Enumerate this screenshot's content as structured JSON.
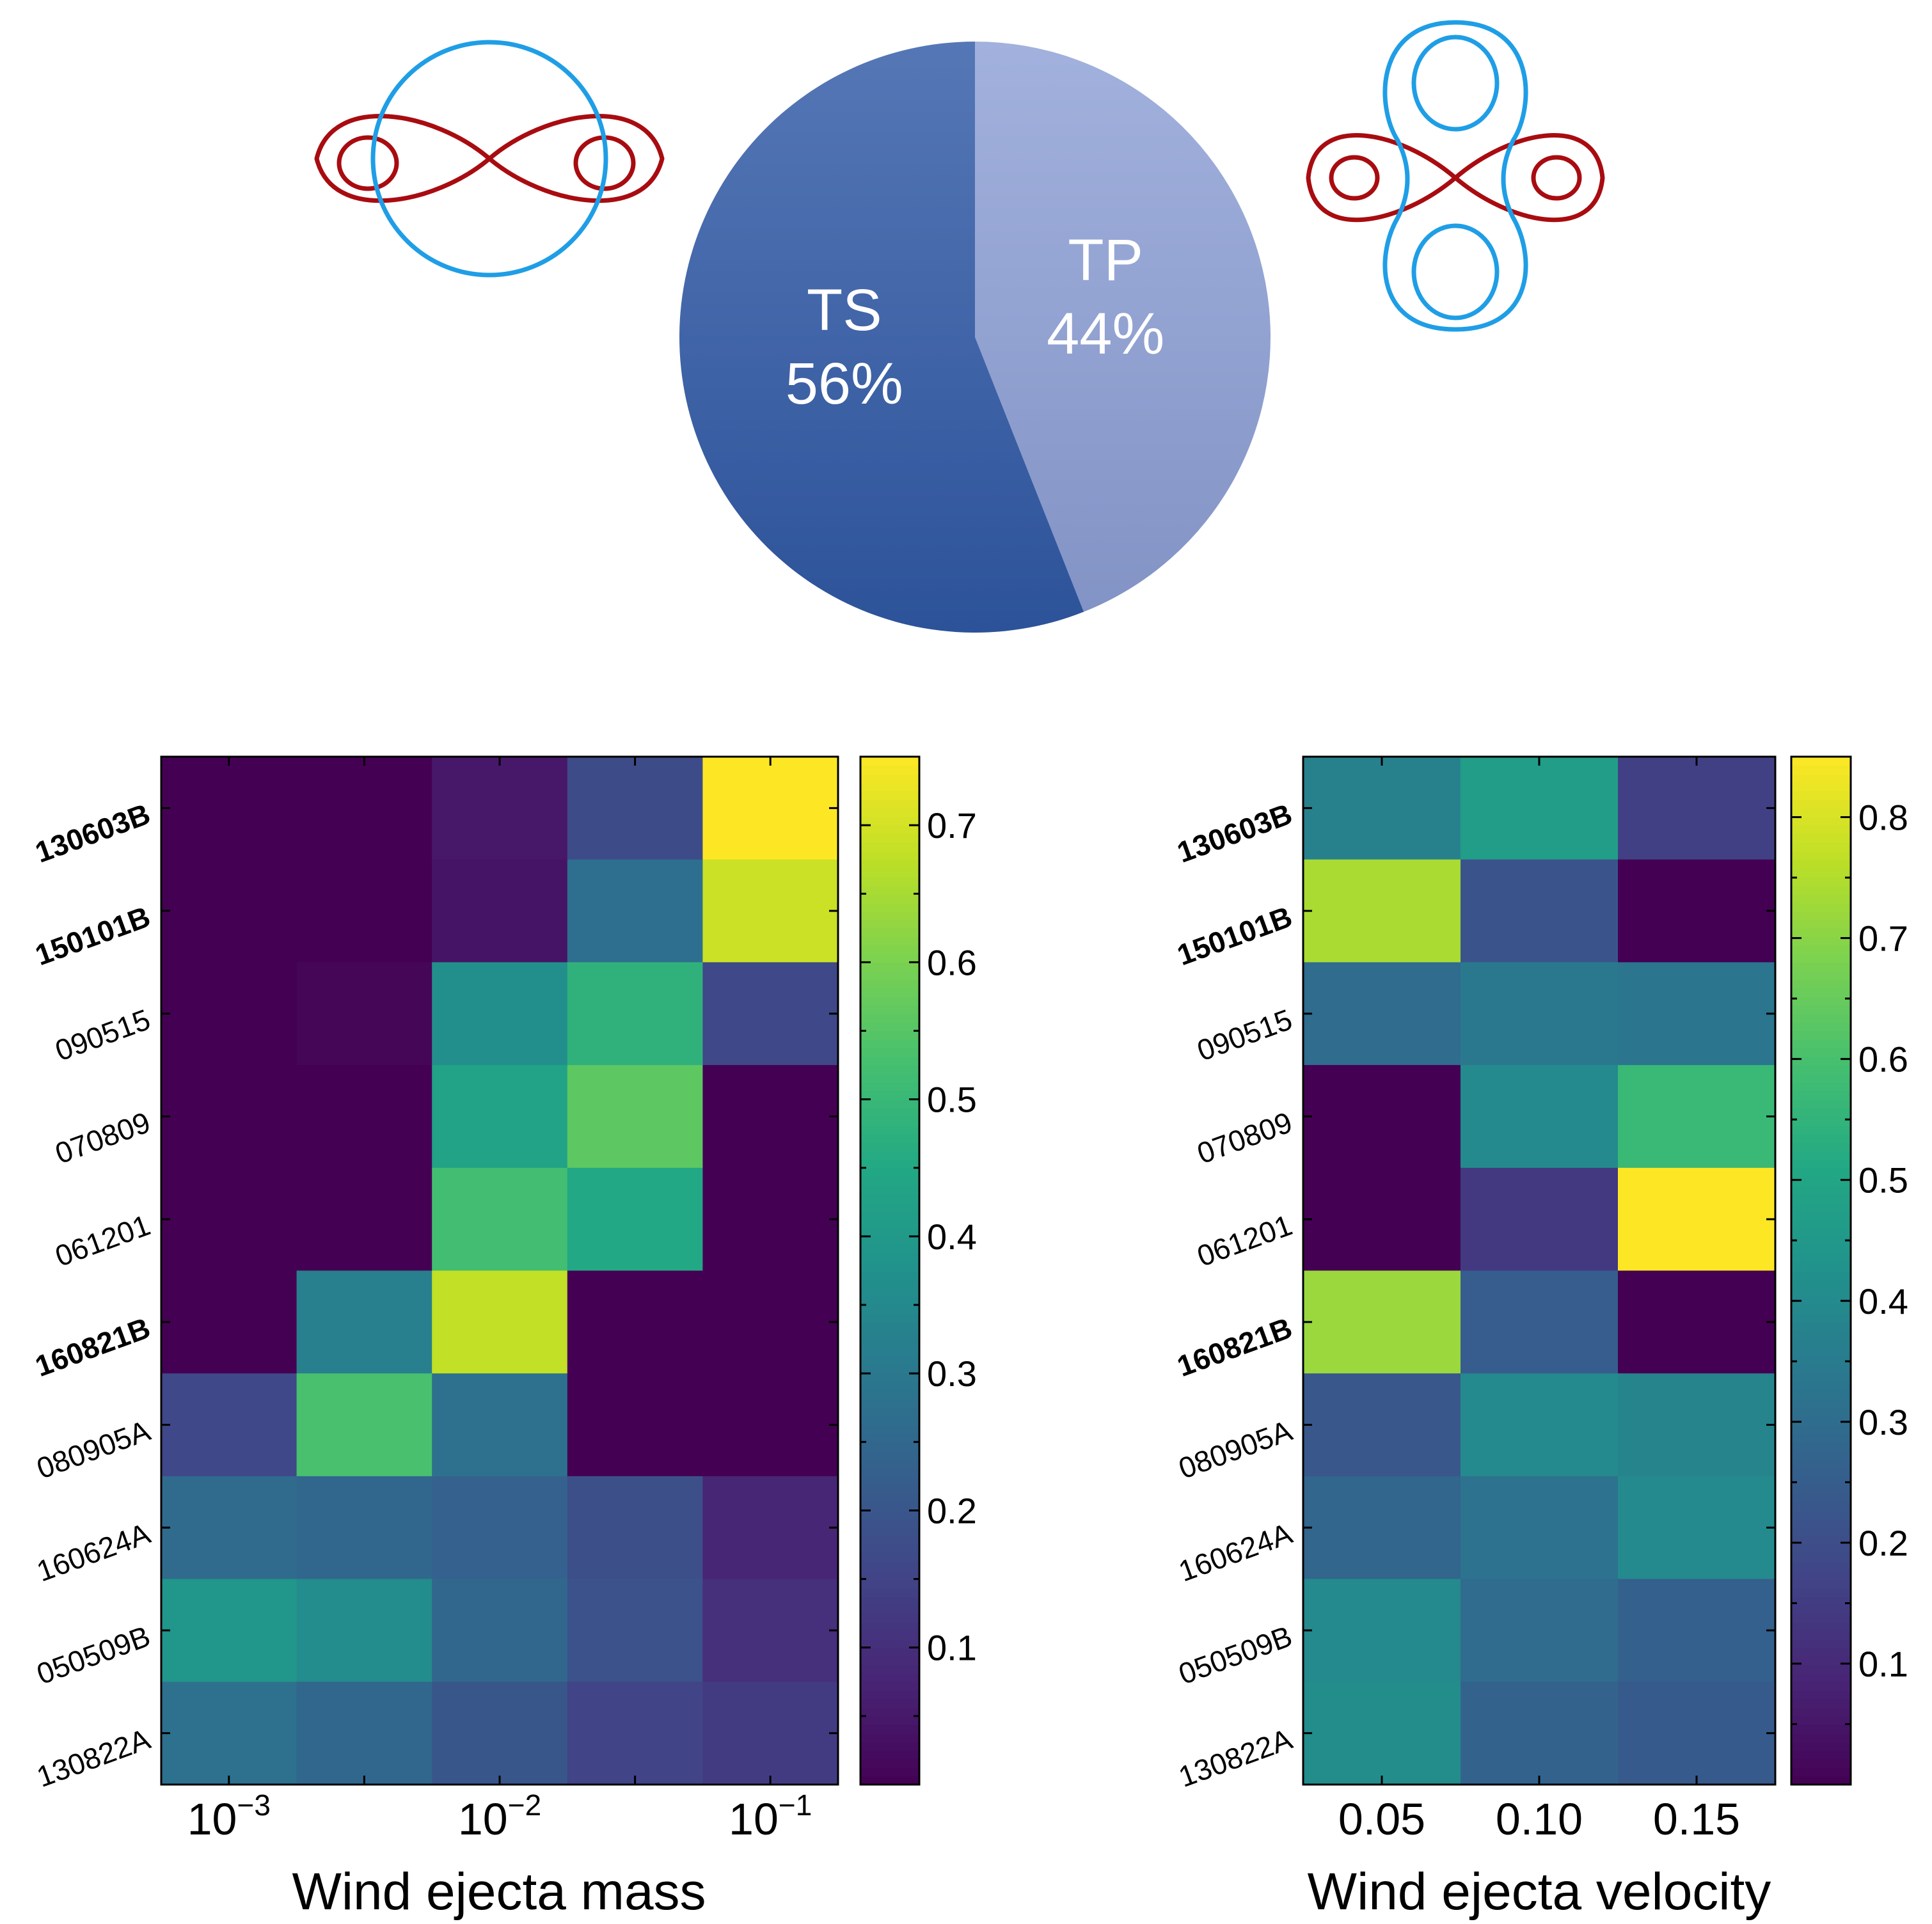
{
  "pie": {
    "type": "pie",
    "slices": [
      {
        "label": "TS",
        "percent_label": "56%",
        "value": 56,
        "color": "#3059a6"
      },
      {
        "label": "TP",
        "percent_label": "44%",
        "value": 44,
        "color": "#8da0d6"
      }
    ],
    "label_color": "#ffffff"
  },
  "colormap_stops": [
    "#440154",
    "#482475",
    "#414487",
    "#355f8d",
    "#2a788e",
    "#21918c",
    "#22a884",
    "#44bf70",
    "#7ad151",
    "#bddf26",
    "#fde725"
  ],
  "chart_data": [
    {
      "type": "heatmap",
      "title": "",
      "xlabel": "Wind ejecta mass",
      "x_tick_labels": [
        {
          "base": "10",
          "exp": "−3"
        },
        {
          "base": "10",
          "exp": "−2"
        },
        {
          "base": "10",
          "exp": "−1"
        }
      ],
      "y_labels": [
        {
          "text": "130603B",
          "bold": true
        },
        {
          "text": "150101B",
          "bold": true
        },
        {
          "text": "090515",
          "bold": false
        },
        {
          "text": "070809",
          "bold": false
        },
        {
          "text": "061201",
          "bold": false
        },
        {
          "text": "160821B",
          "bold": true
        },
        {
          "text": "080905A",
          "bold": false
        },
        {
          "text": "160624A",
          "bold": false
        },
        {
          "text": "050509B",
          "bold": false
        },
        {
          "text": "130822A",
          "bold": false
        }
      ],
      "columns": 5,
      "values": [
        [
          0.0,
          0.0,
          0.05,
          0.17,
          0.75
        ],
        [
          0.0,
          0.0,
          0.04,
          0.27,
          0.69
        ],
        [
          0.0,
          0.01,
          0.37,
          0.48,
          0.16
        ],
        [
          0.0,
          0.0,
          0.43,
          0.56,
          0.0
        ],
        [
          0.0,
          0.0,
          0.52,
          0.45,
          0.0
        ],
        [
          0.0,
          0.32,
          0.68,
          0.0,
          0.0
        ],
        [
          0.16,
          0.53,
          0.28,
          0.0,
          0.0
        ],
        [
          0.26,
          0.25,
          0.23,
          0.18,
          0.08
        ],
        [
          0.39,
          0.36,
          0.25,
          0.19,
          0.1
        ],
        [
          0.28,
          0.25,
          0.2,
          0.15,
          0.13
        ]
      ],
      "vmin": 0.0,
      "vmax": 0.75,
      "colorbar_ticks": [
        "0.1",
        "0.2",
        "0.3",
        "0.4",
        "0.5",
        "0.6",
        "0.7"
      ],
      "colorbar_tick_values": [
        0.1,
        0.2,
        0.3,
        0.4,
        0.5,
        0.6,
        0.7
      ]
    },
    {
      "type": "heatmap",
      "title": "",
      "xlabel": "Wind ejecta velocity",
      "x_tick_labels": [
        "0.05",
        "0.10",
        "0.15"
      ],
      "y_labels": [
        {
          "text": "130603B",
          "bold": true
        },
        {
          "text": "150101B",
          "bold": true
        },
        {
          "text": "090515",
          "bold": false
        },
        {
          "text": "070809",
          "bold": false
        },
        {
          "text": "061201",
          "bold": false
        },
        {
          "text": "160821B",
          "bold": true
        },
        {
          "text": "080905A",
          "bold": false
        },
        {
          "text": "160624A",
          "bold": false
        },
        {
          "text": "050509B",
          "bold": false
        },
        {
          "text": "130822A",
          "bold": false
        }
      ],
      "columns": 3,
      "values": [
        [
          0.37,
          0.47,
          0.16
        ],
        [
          0.74,
          0.22,
          0.0
        ],
        [
          0.3,
          0.34,
          0.33
        ],
        [
          0.0,
          0.4,
          0.57
        ],
        [
          0.0,
          0.14,
          0.85
        ],
        [
          0.72,
          0.25,
          0.0
        ],
        [
          0.23,
          0.4,
          0.38
        ],
        [
          0.28,
          0.32,
          0.4
        ],
        [
          0.4,
          0.3,
          0.26
        ],
        [
          0.41,
          0.27,
          0.24
        ]
      ],
      "vmin": 0.0,
      "vmax": 0.85,
      "colorbar_ticks": [
        "0.1",
        "0.2",
        "0.3",
        "0.4",
        "0.5",
        "0.6",
        "0.7",
        "0.8"
      ],
      "colorbar_tick_values": [
        0.1,
        0.2,
        0.3,
        0.4,
        0.5,
        0.6,
        0.7,
        0.8
      ]
    }
  ]
}
